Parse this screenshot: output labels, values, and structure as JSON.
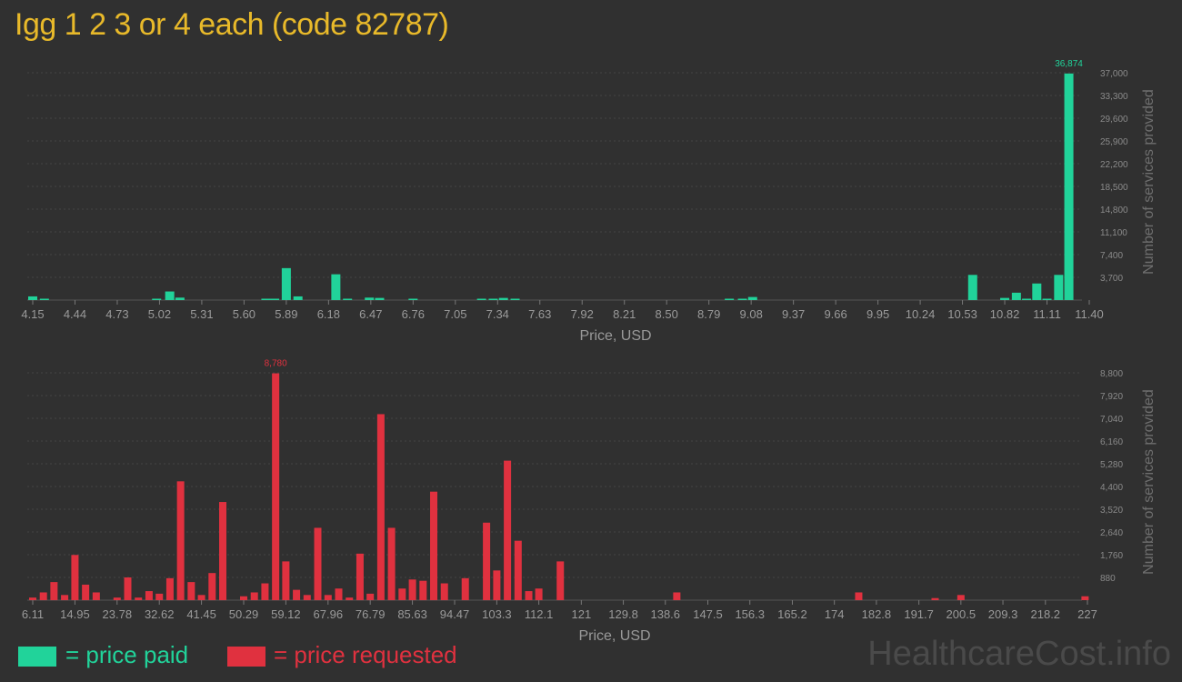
{
  "title": "Igg 1 2 3 or 4 each (code 82787)",
  "legend": {
    "paid_label": "= price paid",
    "requested_label": "= price requested",
    "paid_color": "#21d39a",
    "requested_color": "#e0313f"
  },
  "watermark": "HealthcareCost.info",
  "chart_data": [
    {
      "type": "bar",
      "name": "price paid",
      "xlabel": "Price, USD",
      "ylabel": "Number of services provided",
      "x_tick_labels": [
        "4.15",
        "4.44",
        "4.73",
        "5.02",
        "5.31",
        "5.60",
        "5.89",
        "6.18",
        "6.47",
        "6.76",
        "7.05",
        "7.34",
        "7.63",
        "7.92",
        "8.21",
        "8.50",
        "8.79",
        "9.08",
        "9.37",
        "9.66",
        "9.95",
        "10.24",
        "10.53",
        "10.82",
        "11.11",
        "11.40"
      ],
      "y_tick_labels": [
        "3,700",
        "7,400",
        "11,100",
        "14,800",
        "18,500",
        "22,200",
        "25,900",
        "29,600",
        "33,300",
        "37,000"
      ],
      "ylim": [
        0,
        37000
      ],
      "max_label": "36,874",
      "color": "#21d39a",
      "bars": [
        {
          "x": 4.15,
          "value": 600
        },
        {
          "x": 4.23,
          "value": 200
        },
        {
          "x": 5.0,
          "value": 150
        },
        {
          "x": 5.09,
          "value": 1400
        },
        {
          "x": 5.16,
          "value": 400
        },
        {
          "x": 5.75,
          "value": 100
        },
        {
          "x": 5.81,
          "value": 100
        },
        {
          "x": 5.89,
          "value": 5200
        },
        {
          "x": 5.97,
          "value": 600
        },
        {
          "x": 6.23,
          "value": 4200
        },
        {
          "x": 6.31,
          "value": 150
        },
        {
          "x": 6.46,
          "value": 400
        },
        {
          "x": 6.53,
          "value": 350
        },
        {
          "x": 6.76,
          "value": 150
        },
        {
          "x": 7.23,
          "value": 150
        },
        {
          "x": 7.31,
          "value": 150
        },
        {
          "x": 7.38,
          "value": 350
        },
        {
          "x": 7.46,
          "value": 150
        },
        {
          "x": 8.93,
          "value": 200
        },
        {
          "x": 9.02,
          "value": 200
        },
        {
          "x": 9.09,
          "value": 500
        },
        {
          "x": 10.6,
          "value": 4100
        },
        {
          "x": 10.82,
          "value": 350
        },
        {
          "x": 10.9,
          "value": 1200
        },
        {
          "x": 10.97,
          "value": 200
        },
        {
          "x": 11.04,
          "value": 2700
        },
        {
          "x": 11.11,
          "value": 200
        },
        {
          "x": 11.19,
          "value": 4100
        },
        {
          "x": 11.26,
          "value": 36874
        }
      ]
    },
    {
      "type": "bar",
      "name": "price requested",
      "xlabel": "Price, USD",
      "ylabel": "Number of services provided",
      "x_tick_labels": [
        "6.11",
        "14.95",
        "23.78",
        "32.62",
        "41.45",
        "50.29",
        "59.12",
        "67.96",
        "76.79",
        "85.63",
        "94.47",
        "103.3",
        "112.1",
        "121",
        "129.8",
        "138.6",
        "147.5",
        "156.3",
        "165.2",
        "174",
        "182.8",
        "191.7",
        "200.5",
        "209.3",
        "218.2",
        "227"
      ],
      "y_tick_labels": [
        "880",
        "1,760",
        "2,640",
        "3,520",
        "4,400",
        "5,280",
        "6,160",
        "7,040",
        "7,920",
        "8,800"
      ],
      "ylim": [
        0,
        8800
      ],
      "max_label": "8,780",
      "color": "#e0313f",
      "bars": [
        {
          "x": 6.11,
          "value": 100
        },
        {
          "x": 8.34,
          "value": 300
        },
        {
          "x": 10.56,
          "value": 700
        },
        {
          "x": 12.79,
          "value": 200
        },
        {
          "x": 14.95,
          "value": 1750
        },
        {
          "x": 17.18,
          "value": 600
        },
        {
          "x": 19.41,
          "value": 300
        },
        {
          "x": 23.78,
          "value": 100
        },
        {
          "x": 26.01,
          "value": 880
        },
        {
          "x": 28.24,
          "value": 100
        },
        {
          "x": 30.47,
          "value": 350
        },
        {
          "x": 32.62,
          "value": 250
        },
        {
          "x": 34.85,
          "value": 850
        },
        {
          "x": 37.08,
          "value": 4600
        },
        {
          "x": 39.31,
          "value": 700
        },
        {
          "x": 41.45,
          "value": 200
        },
        {
          "x": 43.68,
          "value": 1050
        },
        {
          "x": 45.91,
          "value": 3800
        },
        {
          "x": 50.29,
          "value": 150
        },
        {
          "x": 52.52,
          "value": 300
        },
        {
          "x": 54.75,
          "value": 650
        },
        {
          "x": 56.98,
          "value": 8780
        },
        {
          "x": 59.12,
          "value": 1500
        },
        {
          "x": 61.35,
          "value": 400
        },
        {
          "x": 63.58,
          "value": 200
        },
        {
          "x": 65.81,
          "value": 2800
        },
        {
          "x": 67.96,
          "value": 200
        },
        {
          "x": 70.19,
          "value": 450
        },
        {
          "x": 72.42,
          "value": 100
        },
        {
          "x": 74.65,
          "value": 1800
        },
        {
          "x": 76.79,
          "value": 250
        },
        {
          "x": 79.02,
          "value": 7200
        },
        {
          "x": 81.25,
          "value": 2800
        },
        {
          "x": 83.48,
          "value": 450
        },
        {
          "x": 85.63,
          "value": 800
        },
        {
          "x": 87.86,
          "value": 750
        },
        {
          "x": 90.09,
          "value": 4200
        },
        {
          "x": 92.32,
          "value": 650
        },
        {
          "x": 96.7,
          "value": 850
        },
        {
          "x": 101.15,
          "value": 3000
        },
        {
          "x": 103.3,
          "value": 1150
        },
        {
          "x": 105.53,
          "value": 5400
        },
        {
          "x": 107.76,
          "value": 2300
        },
        {
          "x": 109.99,
          "value": 350
        },
        {
          "x": 112.1,
          "value": 450
        },
        {
          "x": 116.6,
          "value": 1500
        },
        {
          "x": 141.0,
          "value": 300
        },
        {
          "x": 179.1,
          "value": 300
        },
        {
          "x": 195.1,
          "value": 80
        },
        {
          "x": 200.5,
          "value": 200
        },
        {
          "x": 226.5,
          "value": 150
        }
      ]
    }
  ]
}
